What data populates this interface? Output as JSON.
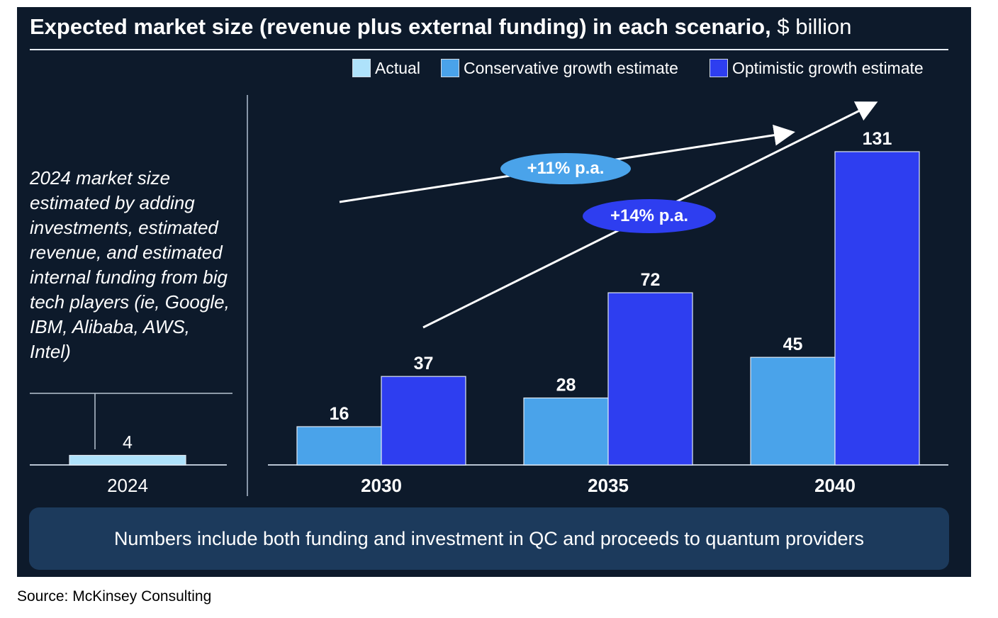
{
  "title": "Expected market size (revenue plus external funding) in each scenario,",
  "title_unit": "$ billion",
  "legend": [
    {
      "label": "Actual",
      "color": "#aee2fb"
    },
    {
      "label": "Conservative growth estimate",
      "color": "#4aa3ea"
    },
    {
      "label": "Optimistic growth estimate",
      "color": "#2e3ef0"
    }
  ],
  "note": "2024 market size estimated by adding investments, estimated revenue, and estimated internal funding from big tech players (ie, Google, IBM, Alibaba, AWS, Intel)",
  "growth_labels": {
    "conservative": "+11% p.a.",
    "optimistic": "+14% p.a."
  },
  "footer": "Numbers include both funding and investment in QC and proceeds to quantum providers",
  "source": "Source: McKinsey Consulting",
  "chart_data": {
    "type": "bar",
    "categories": [
      "2024",
      "2030",
      "2035",
      "2040"
    ],
    "series": [
      {
        "name": "Actual",
        "values": [
          4,
          null,
          null,
          null
        ]
      },
      {
        "name": "Conservative growth estimate",
        "values": [
          null,
          16,
          28,
          45
        ]
      },
      {
        "name": "Optimistic growth estimate",
        "values": [
          null,
          37,
          72,
          131
        ]
      }
    ],
    "title": "Expected market size (revenue plus external funding) in each scenario, $ billion",
    "ylim": [
      0,
      131
    ],
    "annotations": [
      "+11% p.a.",
      "+14% p.a."
    ]
  }
}
